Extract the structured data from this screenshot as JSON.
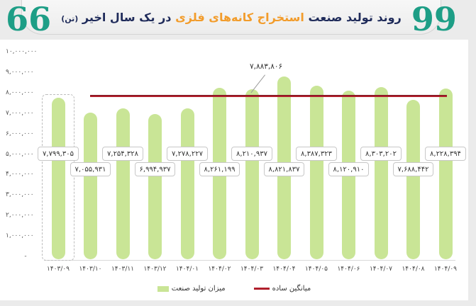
{
  "header": {
    "title_part1": "روند تولید صنعت",
    "title_highlight": "استخراج کانه‌های فلزی",
    "title_part2": "در یک سال اخیر",
    "title_unit": "(تن)",
    "open_quote": "99",
    "close_quote": "66"
  },
  "colors": {
    "bar": "#c9e596",
    "average_line": "#b01f2c",
    "title_dark": "#1f2b5a",
    "title_highlight": "#f29c2b",
    "quote": "#1d9e86"
  },
  "chart_data": {
    "type": "bar",
    "title": "روند تولید صنعت استخراج کانه‌های فلزی در یک سال اخیر (تن)",
    "xlabel": "",
    "ylabel": "",
    "ylim": [
      0,
      10000000
    ],
    "yticks": [
      "۱۰,۰۰۰,۰۰۰",
      "۹,۰۰۰,۰۰۰",
      "۸,۰۰۰,۰۰۰",
      "۷,۰۰۰,۰۰۰",
      "۶,۰۰۰,۰۰۰",
      "۵,۰۰۰,۰۰۰",
      "۴,۰۰۰,۰۰۰",
      "۳,۰۰۰,۰۰۰",
      "۲,۰۰۰,۰۰۰",
      "۱,۰۰۰,۰۰۰",
      "-"
    ],
    "categories": [
      "۱۴۰۳/۰۹",
      "۱۴۰۳/۱۰",
      "۱۴۰۳/۱۱",
      "۱۴۰۳/۱۲",
      "۱۴۰۴/۰۱",
      "۱۴۰۴/۰۲",
      "۱۴۰۴/۰۳",
      "۱۴۰۴/۰۴",
      "۱۴۰۴/۰۵",
      "۱۴۰۴/۰۶",
      "۱۴۰۴/۰۷",
      "۱۴۰۴/۰۸",
      "۱۴۰۴/۰۹"
    ],
    "series": [
      {
        "name": "میزان تولید صنعت",
        "type": "bar",
        "values": [
          7799305,
          7055931,
          7254328,
          6994937,
          7278227,
          8261199,
          8210937,
          8821837,
          8387323,
          8120910,
          8303202,
          7688442,
          8228394
        ],
        "labels": [
          "۷,۷۹۹,۳۰۵",
          "۷,۰۵۵,۹۳۱",
          "۷,۲۵۴,۳۲۸",
          "۶,۹۹۴,۹۳۷",
          "۷,۲۷۸,۲۲۷",
          "۸,۲۶۱,۱۹۹",
          "۸,۲۱۰,۹۳۷",
          "۸,۸۲۱,۸۳۷",
          "۸,۳۸۷,۳۲۳",
          "۸,۱۲۰,۹۱۰",
          "۸,۳۰۳,۲۰۲",
          "۷,۶۸۸,۴۴۲",
          "۸,۲۲۸,۳۹۴"
        ]
      },
      {
        "name": "میانگین ساده",
        "type": "line",
        "value": 7883806,
        "label": "۷,۸۸۳,۸۰۶"
      }
    ],
    "legend_position": "bottom",
    "grid": false
  }
}
